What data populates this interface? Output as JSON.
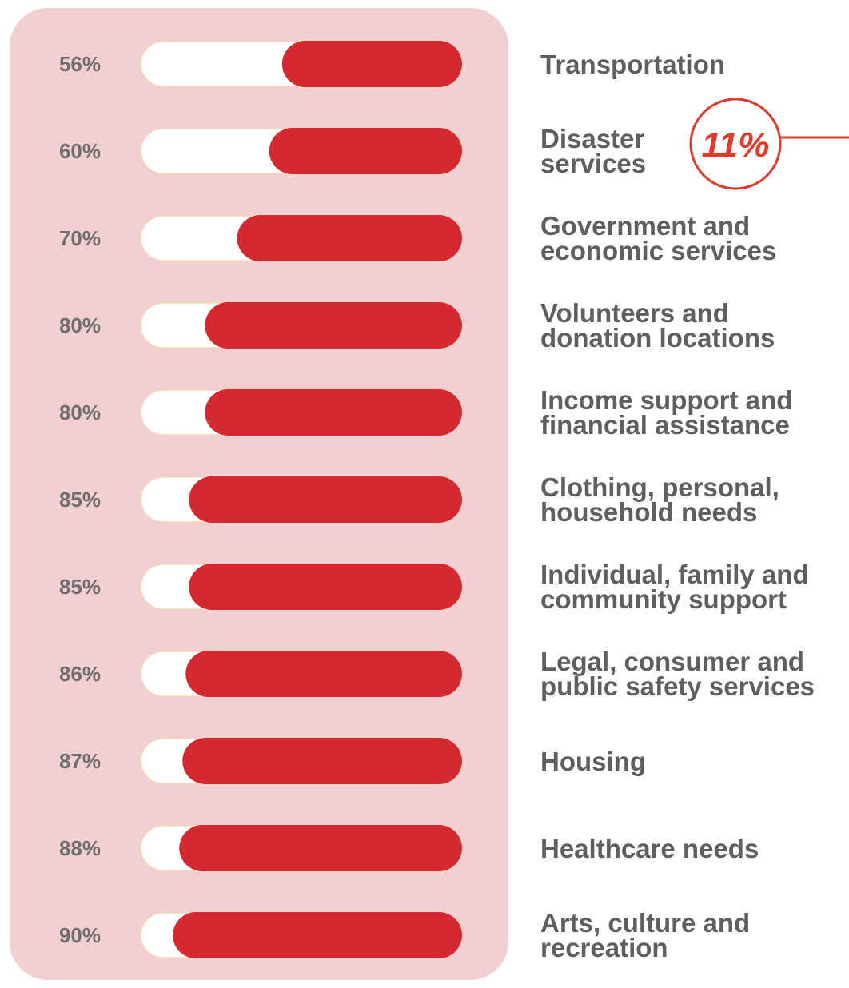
{
  "chart_data": {
    "type": "bar",
    "orientation": "horizontal",
    "categories": [
      "Transportation",
      "Disaster services",
      "Government and economic services",
      "Volunteers and donation locations",
      "Income support and financial assistance",
      "Clothing, personal, household needs",
      "Individual, family and community support",
      "Legal, consumer and public safety services",
      "Housing",
      "Healthcare needs",
      "Arts, culture and recreation"
    ],
    "category_lines": [
      [
        "Transportation"
      ],
      [
        "Disaster",
        "services"
      ],
      [
        "Government and",
        "economic services"
      ],
      [
        "Volunteers and",
        "donation locations"
      ],
      [
        "Income support and",
        "financial assistance"
      ],
      [
        "Clothing, personal,",
        "household needs"
      ],
      [
        "Individual, family and",
        "community support"
      ],
      [
        "Legal, consumer and",
        "public safety services"
      ],
      [
        "Housing"
      ],
      [
        "Healthcare needs"
      ],
      [
        "Arts, culture and",
        "recreation"
      ]
    ],
    "values": [
      56,
      60,
      70,
      80,
      80,
      85,
      85,
      86,
      87,
      88,
      90
    ],
    "value_labels": [
      "56%",
      "60%",
      "70%",
      "80%",
      "80%",
      "85%",
      "85%",
      "86%",
      "87%",
      "88%",
      "90%"
    ],
    "xlim": [
      0,
      100
    ],
    "grid": false,
    "legend": "none",
    "annotation": {
      "text": "11%",
      "attached_to": "Disaster services"
    },
    "colors": {
      "bar_fill": "#d6282f",
      "bar_track": "#ffffff",
      "panel": "#f2cfd0",
      "value_label": "#6e6e6e",
      "category_label": "#5f5f5f",
      "annotation": "#e03a2c"
    }
  }
}
